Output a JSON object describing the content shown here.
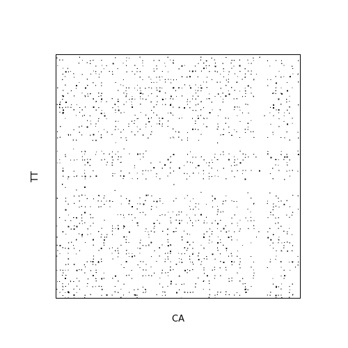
{
  "chart_data": {
    "type": "scatter",
    "title": "",
    "xlabel": "CA",
    "ylabel": "TT",
    "xlim": [
      0,
      1
    ],
    "ylim": [
      0,
      1
    ],
    "grid": false,
    "legend": "none",
    "marker_color": "#000000",
    "background_color": "#ffffff",
    "axes_color": "#000000",
    "point_count_estimate": 9000,
    "sparse_x_bands": [
      [
        0.205,
        0.225
      ],
      [
        0.815,
        0.865
      ],
      [
        0.97,
        0.99
      ]
    ],
    "sparse_y_bands": [
      [
        0.43,
        0.49
      ],
      [
        0.61,
        0.65
      ]
    ]
  }
}
